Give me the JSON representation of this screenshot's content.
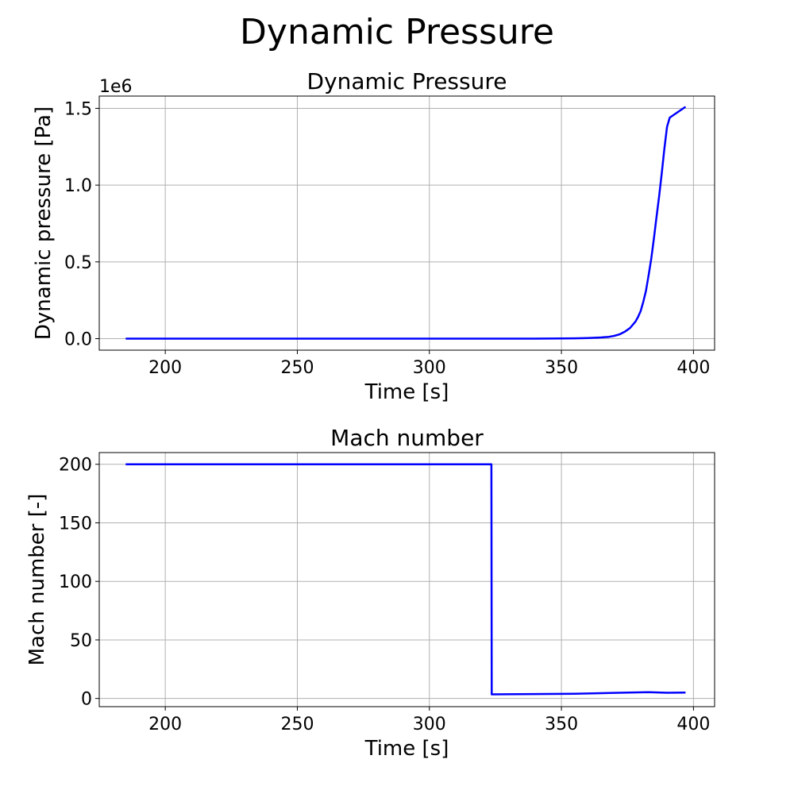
{
  "figure_title": "Dynamic Pressure",
  "chart_data": [
    {
      "type": "line",
      "title": "Dynamic Pressure",
      "xlabel": "Time [s]",
      "ylabel": "Dynamic pressure [Pa]",
      "offset_text": "1e6",
      "xlim": [
        175,
        408
      ],
      "ylim": [
        -0.075,
        1.58
      ],
      "xticks": [
        200,
        250,
        300,
        350,
        400
      ],
      "xtick_labels": [
        "200",
        "250",
        "300",
        "350",
        "400"
      ],
      "yticks": [
        0.0,
        0.5,
        1.0,
        1.5
      ],
      "ytick_labels": [
        "0.0",
        "0.5",
        "1.0",
        "1.5"
      ],
      "grid": true,
      "color": "#0000ff",
      "x": [
        185,
        250,
        300,
        340,
        350,
        355,
        360,
        365,
        368,
        370,
        372,
        374,
        376,
        377,
        378,
        379,
        380,
        381,
        382,
        383,
        384,
        385,
        386,
        387,
        388,
        389,
        390,
        391,
        397
      ],
      "y": [
        0.0,
        0.0,
        0.0,
        0.0,
        0.001,
        0.002,
        0.004,
        0.008,
        0.012,
        0.018,
        0.028,
        0.045,
        0.07,
        0.09,
        0.11,
        0.14,
        0.18,
        0.24,
        0.31,
        0.41,
        0.52,
        0.65,
        0.79,
        0.93,
        1.08,
        1.24,
        1.38,
        1.44,
        1.51
      ]
    },
    {
      "type": "line",
      "title": "Mach number",
      "xlabel": "Time [s]",
      "ylabel": "Mach number [-]",
      "xlim": [
        175,
        408
      ],
      "ylim": [
        -7,
        210
      ],
      "xticks": [
        200,
        250,
        300,
        350,
        400
      ],
      "xtick_labels": [
        "200",
        "250",
        "300",
        "350",
        "400"
      ],
      "yticks": [
        0,
        50,
        100,
        150,
        200
      ],
      "ytick_labels": [
        "0",
        "50",
        "100",
        "150",
        "200"
      ],
      "grid": true,
      "color": "#0000ff",
      "x": [
        185,
        250,
        300,
        323.5,
        323.6,
        340,
        355,
        370,
        383,
        390,
        397
      ],
      "y": [
        200,
        200,
        200,
        200,
        3.5,
        3.8,
        4.0,
        4.8,
        5.4,
        4.9,
        5.0
      ]
    }
  ]
}
